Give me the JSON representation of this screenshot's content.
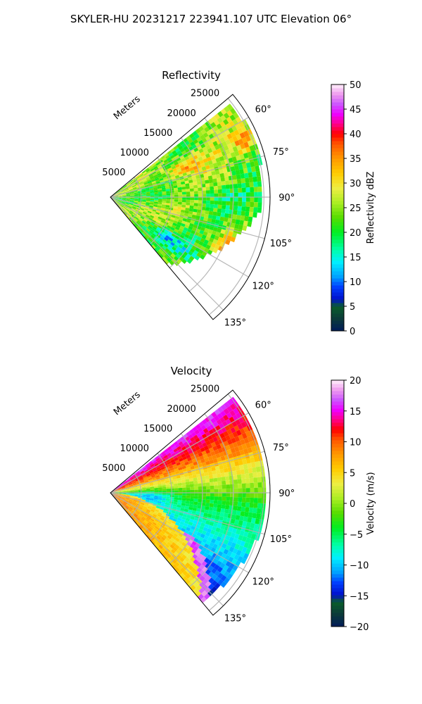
{
  "figure": {
    "suptitle": "SKYLER-HU  20231217  223941.107 UTC Elevation 06°"
  },
  "chart_data": [
    {
      "type": "heatmap",
      "projection": "polar-sector",
      "title": "Reflectivity",
      "radial_axis_label": "Meters",
      "radial_ticks": [
        5000,
        10000,
        15000,
        20000,
        25000
      ],
      "radial_tick_labels": [
        "5000",
        "10000",
        "15000",
        "20000",
        "25000"
      ],
      "radial_range": [
        0,
        26000
      ],
      "angle_range_deg": [
        50,
        140
      ],
      "angle_ticks": [
        60,
        75,
        90,
        105,
        120,
        135
      ],
      "angle_tick_labels": [
        "60°",
        "75°",
        "90°",
        "105°",
        "120°",
        "135°"
      ],
      "grid": true,
      "colorbar": {
        "label": "Reflectivity dBZ",
        "range": [
          0,
          50
        ],
        "ticks": [
          0,
          5,
          10,
          15,
          20,
          25,
          30,
          35,
          40,
          45,
          50
        ],
        "tick_labels": [
          "0",
          "5",
          "10",
          "15",
          "20",
          "25",
          "30",
          "35",
          "40",
          "45",
          "50"
        ]
      },
      "field_summary": {
        "typical": 25,
        "high_features": [
          {
            "azimuth_deg": 68,
            "range_m": 13000,
            "value": 37
          },
          {
            "azimuth_deg": 67,
            "range_m": 24000,
            "value": 36
          },
          {
            "azimuth_deg": 112,
            "range_m": 22000,
            "value": 37
          }
        ],
        "low_features": [
          {
            "azimuth_deg": 90,
            "range_m": 15000,
            "value": 20
          },
          {
            "azimuth_deg": 125,
            "range_m": 14000,
            "value": 16
          }
        ]
      }
    },
    {
      "type": "heatmap",
      "projection": "polar-sector",
      "title": "Velocity",
      "radial_axis_label": "Meters",
      "radial_ticks": [
        5000,
        10000,
        15000,
        20000,
        25000
      ],
      "radial_tick_labels": [
        "5000",
        "10000",
        "15000",
        "20000",
        "25000"
      ],
      "radial_range": [
        0,
        26000
      ],
      "angle_range_deg": [
        50,
        140
      ],
      "angle_ticks": [
        60,
        75,
        90,
        105,
        120,
        135
      ],
      "angle_tick_labels": [
        "60°",
        "75°",
        "90°",
        "105°",
        "120°",
        "135°"
      ],
      "grid": true,
      "colorbar": {
        "label": "Velocity (m/s)",
        "range": [
          -20,
          20
        ],
        "ticks": [
          -20,
          -15,
          -10,
          -5,
          0,
          5,
          10,
          15,
          20
        ],
        "tick_labels": [
          "−20",
          "−15",
          "−10",
          "−5",
          "0",
          "5",
          "10",
          "15",
          "20"
        ]
      },
      "field_summary": {
        "north_sector_max": 12,
        "east_sector": -4,
        "southeast_min": -10,
        "near_field_south": 9,
        "fold_edge_value": 17
      }
    }
  ]
}
